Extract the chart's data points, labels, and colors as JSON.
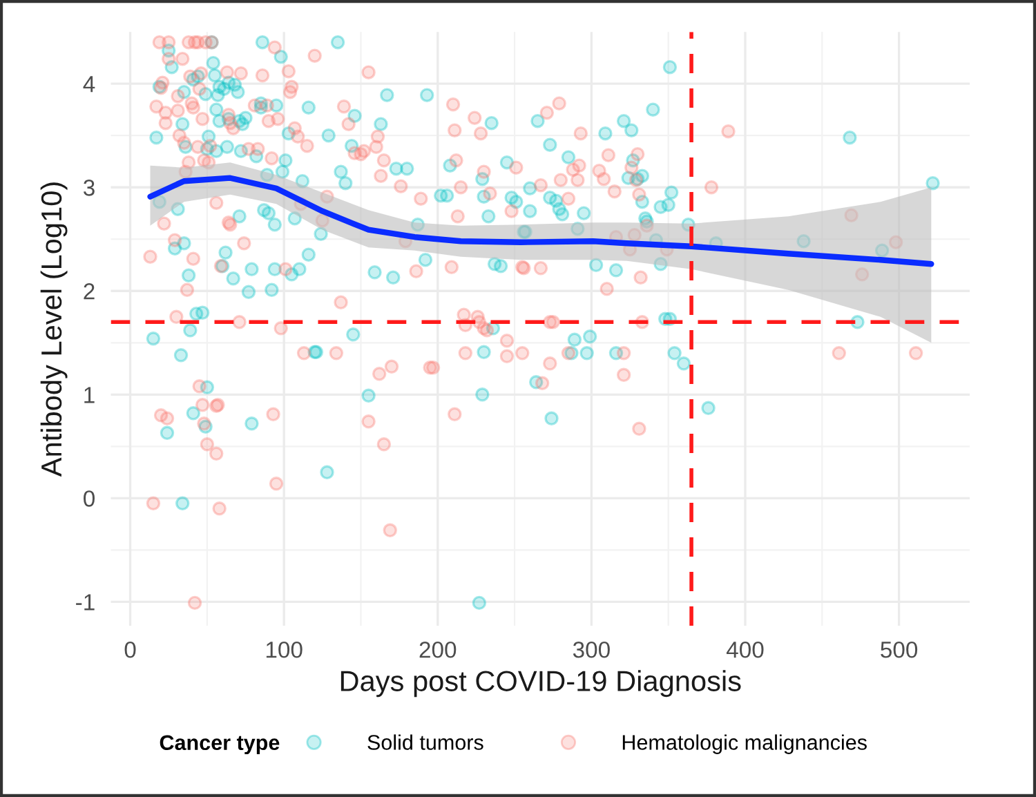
{
  "chart_data": {
    "type": "scatter",
    "xlabel": "Days post COVID-19 Diagnosis",
    "ylabel": "Antibody Level (Log10)",
    "legend_title": "Cancer type",
    "legend": "bottom",
    "grid": true,
    "marker": "circle",
    "xlim": [
      -12.6,
      546
    ],
    "ylim": [
      -1.23,
      4.5
    ],
    "xticks": [
      0,
      100,
      200,
      300,
      400,
      500
    ],
    "yticks": [
      -1,
      0,
      1,
      2,
      3,
      4
    ],
    "ref_lines": [
      {
        "axis": "y",
        "value": 1.7,
        "color": "#ff1a1a",
        "line_style": "dashed"
      },
      {
        "axis": "x",
        "value": 365,
        "color": "#ff1a1a",
        "line_style": "dashed"
      }
    ],
    "series": [
      {
        "name": "Solid tumors",
        "color": "#00bfc4",
        "x": [
          15,
          17,
          19,
          19,
          25,
          27,
          29,
          31,
          33,
          34,
          35,
          35,
          36,
          38,
          39,
          41,
          43,
          44,
          47,
          49,
          50,
          51,
          53,
          54,
          55,
          56,
          56,
          57,
          58,
          58,
          60,
          61,
          62,
          63,
          64,
          64,
          67,
          68,
          70,
          71,
          71,
          72,
          73,
          75,
          77,
          79,
          82,
          85,
          85,
          86,
          87,
          89,
          90,
          92,
          94,
          94,
          95,
          98,
          99,
          101,
          103,
          105,
          107,
          110,
          112,
          116,
          116,
          120,
          121,
          124,
          129,
          135,
          137,
          140,
          145,
          144,
          146,
          159,
          163,
          167,
          171,
          173,
          180,
          187,
          192,
          193,
          202,
          206,
          208,
          229,
          230,
          229,
          230,
          233,
          235,
          236,
          237,
          241,
          245,
          248,
          251,
          256,
          24,
          34,
          41,
          49,
          50,
          79,
          128,
          155,
          227,
          351,
          340,
          265,
          273,
          309,
          321,
          326,
          285,
          327,
          260,
          273,
          277,
          279,
          281,
          260,
          295,
          324,
          333,
          330,
          333,
          345,
          350,
          352,
          335,
          336,
          291,
          257,
          363,
          381,
          303,
          316,
          345,
          438,
          468,
          522,
          489,
          473,
          348,
          351,
          289,
          299,
          287,
          297,
          316,
          354,
          360,
          264,
          342,
          274,
          376
        ],
        "values": [
          1.54,
          3.48,
          3.97,
          2.86,
          4.32,
          4.16,
          2.41,
          2.79,
          1.38,
          3.61,
          3.92,
          2.46,
          3.39,
          2.15,
          1.62,
          4.04,
          1.78,
          4.07,
          1.79,
          3.9,
          3.37,
          3.49,
          4.4,
          4.2,
          4.08,
          3.75,
          3.35,
          3.89,
          3.64,
          3.97,
          2.24,
          3.95,
          2.37,
          3.39,
          4.01,
          3.66,
          2.12,
          3.99,
          3.92,
          3.64,
          2.72,
          3.35,
          3.61,
          3.67,
          1.99,
          2.21,
          3.3,
          3.81,
          3.77,
          4.4,
          2.78,
          3.12,
          2.75,
          2.01,
          2.21,
          2.64,
          3.79,
          4.26,
          3.15,
          3.26,
          3.52,
          2.16,
          2.7,
          2.21,
          3.06,
          2.35,
          3.77,
          1.41,
          1.41,
          2.55,
          3.5,
          4.4,
          3.15,
          3.04,
          1.58,
          3.4,
          3.69,
          2.18,
          3.61,
          3.89,
          2.13,
          3.18,
          3.18,
          2.64,
          2.3,
          3.89,
          2.92,
          2.92,
          3.21,
          3.08,
          2.91,
          1.0,
          1.41,
          2.72,
          3.62,
          1.64,
          2.26,
          2.24,
          3.24,
          2.9,
          2.86,
          2.57,
          0.63,
          -0.05,
          0.82,
          0.69,
          1.07,
          0.72,
          0.25,
          0.99,
          -1.01,
          4.16,
          3.75,
          3.64,
          3.41,
          3.52,
          3.64,
          3.55,
          3.29,
          3.26,
          2.99,
          2.9,
          2.87,
          2.79,
          2.74,
          2.77,
          2.75,
          3.09,
          3.11,
          3.08,
          2.86,
          2.81,
          2.83,
          2.95,
          2.7,
          2.67,
          2.6,
          2.57,
          2.64,
          2.46,
          2.25,
          2.2,
          2.26,
          2.48,
          3.48,
          3.04,
          2.39,
          1.7,
          1.73,
          1.73,
          1.53,
          1.56,
          1.4,
          1.4,
          1.4,
          1.4,
          1.3,
          1.12,
          2.49,
          0.77,
          0.87
        ]
      },
      {
        "name": "Hematologic malignancies",
        "color": "#f8766d",
        "x": [
          13,
          17,
          19,
          20,
          21,
          22,
          23,
          23,
          25,
          25,
          29,
          30,
          31,
          31,
          32,
          34,
          35,
          36,
          37,
          38,
          38,
          39,
          40,
          41,
          41,
          42,
          44,
          44,
          45,
          46,
          47,
          48,
          49,
          51,
          52,
          53,
          56,
          59,
          63,
          64,
          64,
          65,
          65,
          67,
          71,
          72,
          74,
          77,
          81,
          83,
          86,
          89,
          90,
          92,
          94,
          96,
          98,
          101,
          103,
          104,
          105,
          107,
          109,
          111,
          113,
          115,
          120,
          125,
          128,
          134,
          137,
          139,
          142,
          146,
          150,
          152,
          155,
          160,
          161,
          162,
          163,
          165,
          170,
          176,
          179,
          186,
          189,
          195,
          197,
          209,
          210,
          211,
          212,
          213,
          215,
          217,
          218,
          218,
          224,
          226,
          227,
          228,
          230,
          230,
          232,
          234,
          245,
          245,
          248,
          251,
          255,
          255,
          15,
          20,
          24,
          42,
          47,
          48,
          50,
          56,
          57,
          56,
          58,
          93,
          95,
          155,
          165,
          169,
          211,
          45,
          271,
          279,
          293,
          267,
          280,
          288,
          292,
          291,
          285,
          311,
          305,
          308,
          315,
          326,
          330,
          329,
          331,
          336,
          316,
          325,
          328,
          349,
          256,
          267,
          310,
          332,
          389,
          378,
          469,
          498,
          476,
          273,
          275,
          333,
          285,
          321,
          273,
          321,
          268,
          461,
          511,
          331
        ],
        "values": [
          2.33,
          3.78,
          4.4,
          3.96,
          4.01,
          2.65,
          3.62,
          3.72,
          4.4,
          4.24,
          2.49,
          1.75,
          3.74,
          3.88,
          3.5,
          4.24,
          3.43,
          3.15,
          2.01,
          3.24,
          4.4,
          4.07,
          3.81,
          2.31,
          3.77,
          4.4,
          3.39,
          4.4,
          3.95,
          4.1,
          3.66,
          3.26,
          4.4,
          3.24,
          3.4,
          4.4,
          2.85,
          2.24,
          4.11,
          3.7,
          2.66,
          3.62,
          2.64,
          3.57,
          1.7,
          4.1,
          2.46,
          3.37,
          3.79,
          3.37,
          4.08,
          3.79,
          3.64,
          3.28,
          4.35,
          3.66,
          1.64,
          2.21,
          4.12,
          3.92,
          3.97,
          3.57,
          3.49,
          2.84,
          1.4,
          3.4,
          4.27,
          2.68,
          2.91,
          1.4,
          1.89,
          3.78,
          3.61,
          3.33,
          3.32,
          3.35,
          4.11,
          3.39,
          3.49,
          1.2,
          3.11,
          3.26,
          1.27,
          3.01,
          2.48,
          2.19,
          2.89,
          1.26,
          1.26,
          2.23,
          3.8,
          3.55,
          3.26,
          2.72,
          3.0,
          1.77,
          1.4,
          1.67,
          3.67,
          1.75,
          1.7,
          3.52,
          3.15,
          1.64,
          1.62,
          2.94,
          1.52,
          1.37,
          2.77,
          3.19,
          2.23,
          1.4,
          -0.05,
          0.8,
          0.77,
          -1.01,
          0.9,
          0.72,
          0.52,
          0.89,
          0.9,
          0.43,
          -0.1,
          0.81,
          0.14,
          0.74,
          0.52,
          -0.31,
          0.81,
          1.08,
          3.72,
          3.81,
          3.52,
          3.02,
          3.07,
          3.17,
          3.21,
          3.07,
          2.89,
          3.31,
          3.16,
          3.08,
          2.96,
          3.19,
          3.32,
          3.07,
          2.93,
          2.63,
          2.52,
          2.4,
          2.54,
          2.4,
          2.22,
          2.22,
          2.02,
          2.13,
          3.54,
          3.0,
          2.73,
          2.47,
          2.16,
          1.7,
          1.7,
          1.7,
          1.4,
          1.4,
          1.3,
          1.19,
          1.11,
          1.4,
          1.4,
          0.67
        ]
      },
      {
        "type": "line",
        "marker": "none",
        "color": "#0a2cff",
        "x": [
          13,
          35,
          65,
          95,
          125,
          155,
          185,
          215,
          254,
          301,
          323,
          365,
          428,
          488,
          521
        ],
        "values": [
          2.91,
          3.06,
          3.09,
          2.99,
          2.77,
          2.59,
          2.52,
          2.48,
          2.47,
          2.48,
          2.46,
          2.43,
          2.36,
          2.3,
          2.26
        ],
        "lower": [
          2.63,
          2.86,
          2.93,
          2.84,
          2.59,
          2.42,
          2.39,
          2.33,
          2.3,
          2.3,
          2.29,
          2.21,
          2.01,
          1.75,
          1.5
        ],
        "upper": [
          3.21,
          3.19,
          3.24,
          3.12,
          2.95,
          2.78,
          2.66,
          2.63,
          2.64,
          2.66,
          2.66,
          2.65,
          2.72,
          2.86,
          3.0
        ]
      }
    ]
  }
}
